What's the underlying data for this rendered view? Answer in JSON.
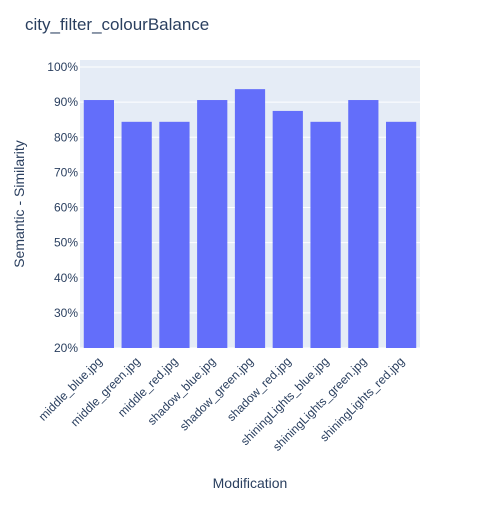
{
  "chart_data": {
    "type": "bar",
    "title": "city_filter_colourBalance",
    "xlabel": "Modification",
    "ylabel": "Semantic - Similarity",
    "categories": [
      "middle_blue.jpg",
      "middle_green.jpg",
      "middle_red.jpg",
      "shadow_blue.jpg",
      "shadow_green.jpg",
      "shadow_red.jpg",
      "shiningLights_blue.jpg",
      "shiningLights_green.jpg",
      "shiningLights_red.jpg"
    ],
    "values": [
      0.906,
      0.844,
      0.844,
      0.906,
      0.937,
      0.875,
      0.844,
      0.906,
      0.844
    ],
    "ylim": [
      0.2,
      1.02
    ],
    "yticks": [
      0.2,
      0.3,
      0.4,
      0.5,
      0.6,
      0.7,
      0.8,
      0.9,
      1.0
    ],
    "ytick_labels": [
      "20%",
      "30%",
      "40%",
      "50%",
      "60%",
      "70%",
      "80%",
      "90%",
      "100%"
    ],
    "grid": true,
    "colors": {
      "bar": "#636efa",
      "plot_bg": "#e5ecf6",
      "grid": "#ffffff",
      "text": "#2a3f5f"
    }
  }
}
